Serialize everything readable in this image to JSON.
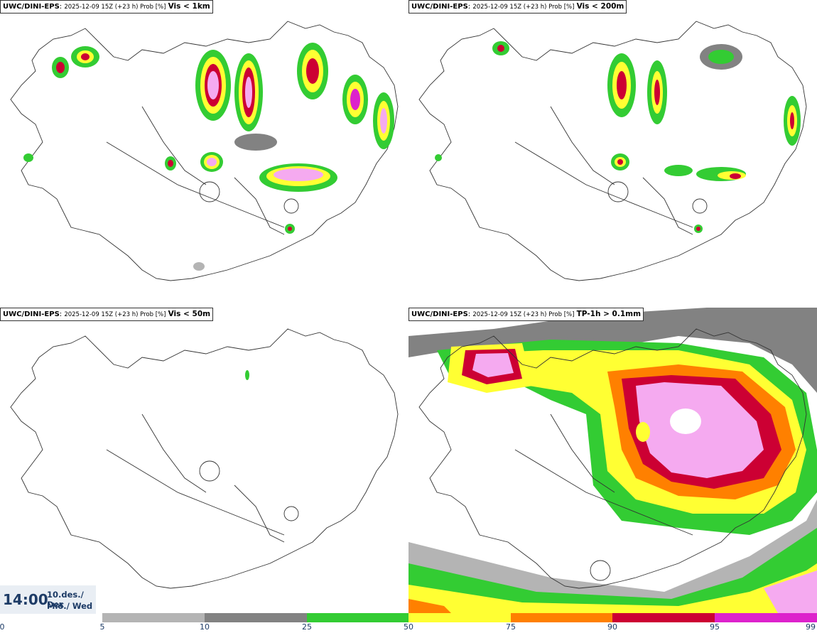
{
  "panels": [
    {
      "model": "UWC/DINI-EPS",
      "meta": "2025-12-09 15Z (+23 h) Prob [%]",
      "threshold": "Vis < 1km"
    },
    {
      "model": "UWC/DINI-EPS",
      "meta": "2025-12-09 15Z (+23 h) Prob [%]",
      "threshold": "Vis < 200m"
    },
    {
      "model": "UWC/DINI-EPS",
      "meta": "2025-12-09 15Z (+23 h) Prob [%]",
      "threshold": "Vis < 50m"
    },
    {
      "model": "UWC/DINI-EPS",
      "meta": "2025-12-09 15Z (+23 h) Prob [%]",
      "threshold": "TP-1h > 0.1mm"
    }
  ],
  "time": {
    "hour": "14:00",
    "date": "10.des./ Dec",
    "weekday": "Mið./ Wed"
  },
  "colorbar": {
    "ticks": [
      "0",
      "5",
      "10",
      "25",
      "50",
      "75",
      "90",
      "95",
      "99"
    ],
    "colors": [
      "#ffffff",
      "#b4b4b4",
      "#828282",
      "#33cc33",
      "#ffff33",
      "#ff8000",
      "#cc0033",
      "#dd22cc",
      "#f5aaf0"
    ]
  }
}
